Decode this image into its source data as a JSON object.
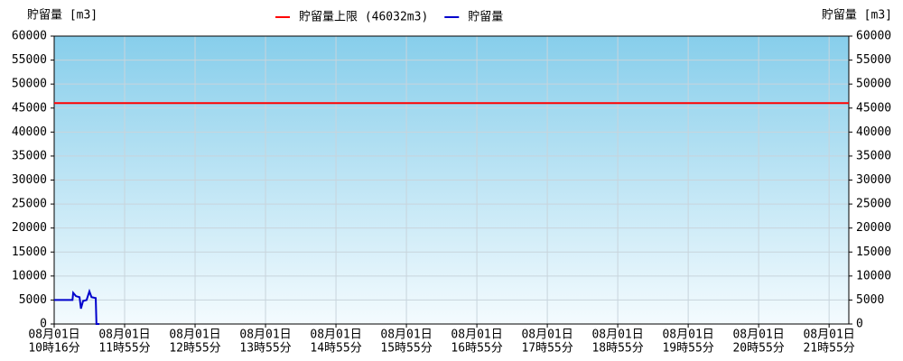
{
  "chart_data": {
    "type": "line",
    "y_label": "貯留量 [m3]",
    "y2_label": "貯留量 [m3]",
    "ylim": [
      0,
      60000
    ],
    "yticks": [
      0,
      5000,
      10000,
      15000,
      20000,
      25000,
      30000,
      35000,
      40000,
      45000,
      50000,
      55000,
      60000
    ],
    "xlim": [
      0,
      11.28
    ],
    "xticks": [
      {
        "value": 0,
        "label": [
          "08月01日",
          "10時16分"
        ]
      },
      {
        "value": 1,
        "label": [
          "08月01日",
          "11時55分"
        ]
      },
      {
        "value": 2,
        "label": [
          "08月01日",
          "12時55分"
        ]
      },
      {
        "value": 3,
        "label": [
          "08月01日",
          "13時55分"
        ]
      },
      {
        "value": 4,
        "label": [
          "08月01日",
          "14時55分"
        ]
      },
      {
        "value": 5,
        "label": [
          "08月01日",
          "15時55分"
        ]
      },
      {
        "value": 6,
        "label": [
          "08月01日",
          "16時55分"
        ]
      },
      {
        "value": 7,
        "label": [
          "08月01日",
          "17時55分"
        ]
      },
      {
        "value": 8,
        "label": [
          "08月01日",
          "18時55分"
        ]
      },
      {
        "value": 9,
        "label": [
          "08月01日",
          "19時55分"
        ]
      },
      {
        "value": 10,
        "label": [
          "08月01日",
          "20時55分"
        ]
      },
      {
        "value": 11,
        "label": [
          "08月01日",
          "21時55分"
        ]
      }
    ],
    "grid": true,
    "series": [
      {
        "name": "貯留量上限 (46032m3)",
        "color": "#ff0000",
        "x": [
          0,
          11.28
        ],
        "values": [
          46032,
          46032
        ]
      },
      {
        "name": "貯留量",
        "color": "#0000cc",
        "x": [
          0,
          0.26,
          0.27,
          0.31,
          0.36,
          0.38,
          0.41,
          0.46,
          0.5,
          0.53,
          0.59,
          0.6,
          0.64
        ],
        "values": [
          5000,
          5000,
          6500,
          5800,
          5600,
          3200,
          4800,
          5000,
          6800,
          5600,
          5400,
          0,
          0
        ]
      }
    ]
  }
}
